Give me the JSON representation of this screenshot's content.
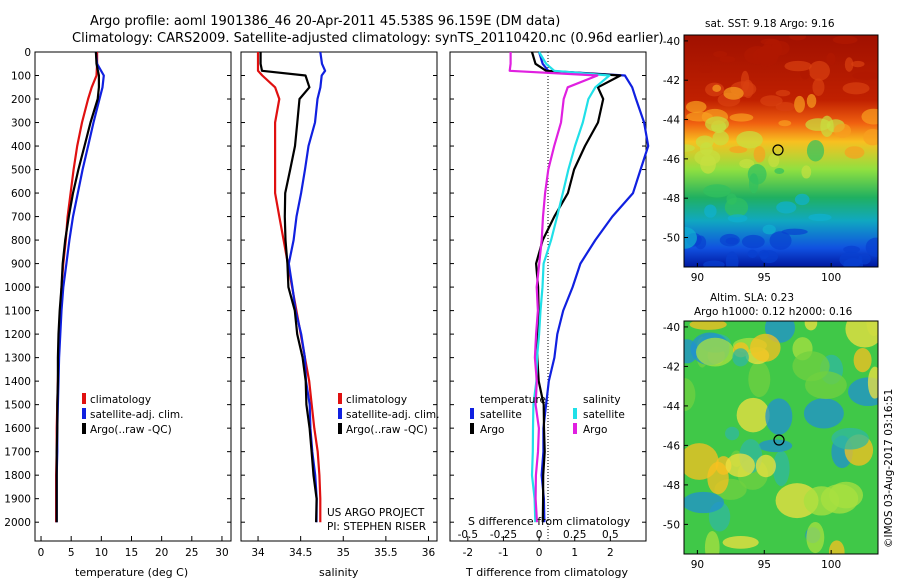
{
  "header": {
    "title1": "Argo profile: aoml 1901386_46 20-Apr-2011 45.538S 96.159E (DM data)",
    "title2": "Climatology: CARS2009. Satellite-adjusted climatology: synTS_20110420.nc (0.96d earlier)"
  },
  "colors": {
    "climatology": "#e01010",
    "satellite": "#1020e0",
    "argo": "#000000",
    "argo_salinity_diff": "#e020e0",
    "satellite_salinity_diff": "#20e0e8"
  },
  "chart_data": [
    {
      "type": "line",
      "panel": "temperature",
      "xlabel": "temperature (deg C)",
      "ylabel": "",
      "xlim": [
        -1,
        31.5
      ],
      "ylim": [
        2080,
        0
      ],
      "xticks": [
        "0",
        "5",
        "10",
        "15",
        "20",
        "25",
        "30"
      ],
      "yticks": [
        "0",
        "100",
        "200",
        "300",
        "400",
        "500",
        "600",
        "700",
        "800",
        "900",
        "1000",
        "1100",
        "1200",
        "1300",
        "1400",
        "1500",
        "1600",
        "1700",
        "1800",
        "1900",
        "2000"
      ],
      "legend": [
        "climatology",
        "satellite-adj. clim.",
        "Argo(..raw -QC)"
      ],
      "legend_position": "lower-right",
      "depth": [
        0,
        50,
        100,
        150,
        200,
        300,
        400,
        500,
        600,
        700,
        800,
        900,
        1000,
        1100,
        1200,
        1300,
        1400,
        1500,
        1600,
        1700,
        1800,
        1900,
        2000
      ],
      "series": [
        {
          "name": "climatology",
          "values": [
            9.3,
            9.3,
            9.2,
            8.4,
            7.8,
            6.8,
            6.0,
            5.4,
            4.9,
            4.4,
            4.1,
            3.7,
            3.4,
            3.2,
            3.0,
            2.9,
            2.8,
            2.7,
            2.6,
            2.6,
            2.5,
            2.5,
            2.5
          ]
        },
        {
          "name": "satellite-adj. clim.",
          "values": [
            9.1,
            9.3,
            10.4,
            10.2,
            9.7,
            8.7,
            7.8,
            6.9,
            6.1,
            5.3,
            4.7,
            4.2,
            3.7,
            3.4,
            3.2,
            3.0,
            2.9,
            2.8,
            2.7,
            2.7,
            2.6,
            2.6,
            2.6
          ]
        },
        {
          "name": "Argo(..raw -QC)",
          "values": [
            9.1,
            9.2,
            9.6,
            9.6,
            9.4,
            8.2,
            7.2,
            6.2,
            5.3,
            4.6,
            4.0,
            3.6,
            3.4,
            3.1,
            2.9,
            2.8,
            2.8,
            2.7,
            2.7,
            2.6,
            2.6,
            2.6,
            2.6
          ]
        }
      ]
    },
    {
      "type": "line",
      "panel": "salinity",
      "xlabel": "salinity",
      "ylabel": "",
      "xlim": [
        33.8,
        36.1
      ],
      "ylim": [
        2080,
        0
      ],
      "xticks": [
        "34",
        "34.5",
        "35",
        "35.5",
        "36"
      ],
      "legend": [
        "climatology",
        "satellite-adj. clim.",
        "Argo(..raw -QC)"
      ],
      "legend_position": "lower-right",
      "depth": [
        0,
        50,
        80,
        100,
        150,
        200,
        300,
        400,
        500,
        600,
        700,
        800,
        900,
        1000,
        1100,
        1200,
        1300,
        1400,
        1500,
        1600,
        1700,
        1800,
        1900,
        2000
      ],
      "series": [
        {
          "name": "climatology",
          "values": [
            34.0,
            34.0,
            34.0,
            34.05,
            34.2,
            34.25,
            34.2,
            34.2,
            34.2,
            34.2,
            34.25,
            34.3,
            34.35,
            34.4,
            34.45,
            34.5,
            34.55,
            34.6,
            34.63,
            34.66,
            34.7,
            34.72,
            34.73,
            34.73
          ]
        },
        {
          "name": "satellite-adj. clim.",
          "values": [
            34.73,
            34.75,
            34.78,
            34.76,
            34.74,
            34.71,
            34.66,
            34.6,
            34.55,
            34.5,
            34.46,
            34.42,
            34.37,
            34.4,
            34.45,
            34.5,
            34.54,
            34.57,
            34.6,
            34.62,
            34.65,
            34.67,
            34.69,
            34.7
          ]
        },
        {
          "name": "Argo(..raw -QC)",
          "values": [
            34.03,
            34.03,
            34.05,
            34.55,
            34.6,
            34.5,
            34.47,
            34.42,
            34.38,
            34.33,
            34.32,
            34.31,
            34.33,
            34.37,
            34.42,
            34.47,
            34.52,
            34.55,
            34.58,
            34.61,
            34.64,
            34.66,
            34.68,
            34.69
          ]
        }
      ]
    },
    {
      "type": "line",
      "panel": "difference",
      "xlabel": "T difference from climatology",
      "xlabel_top": "S difference from climatology",
      "xlim": [
        -2.5,
        3.0
      ],
      "ylim": [
        2080,
        0
      ],
      "xticks": [
        "-2",
        "-1",
        "0",
        "1",
        "2"
      ],
      "xticks_top": [
        "-0.5",
        "-0.25",
        "0",
        "0.25",
        "0.5"
      ],
      "legend": {
        "temperature": [
          "satellite",
          "Argo"
        ],
        "salinity": [
          "satellite",
          "Argo"
        ]
      },
      "legend_position": "lower-right",
      "depth": [
        0,
        50,
        80,
        100,
        150,
        200,
        300,
        400,
        500,
        600,
        700,
        800,
        900,
        1000,
        1100,
        1200,
        1300,
        1400,
        1500,
        1600,
        1700,
        1800,
        1900,
        2000
      ],
      "series": [
        {
          "name": "temperature satellite",
          "values": [
            0.0,
            0.1,
            0.3,
            2.4,
            2.6,
            2.7,
            3.0,
            3.1,
            2.8,
            2.6,
            2.1,
            1.6,
            1.2,
            0.9,
            0.7,
            0.5,
            0.4,
            0.3,
            0.2,
            0.15,
            0.1,
            0.1,
            0.1,
            0.1
          ]
        },
        {
          "name": "temperature Argo",
          "values": [
            -0.2,
            -0.1,
            0.2,
            2.3,
            1.6,
            1.8,
            1.6,
            1.3,
            1.0,
            0.8,
            0.4,
            0.1,
            -0.1,
            0.0,
            0.0,
            -0.05,
            -0.05,
            0.0,
            0.1,
            0.1,
            0.1,
            0.1,
            0.1,
            0.1
          ]
        },
        {
          "name": "salinity satellite",
          "values": [
            0.0,
            0.05,
            0.1,
            0.5,
            0.4,
            0.35,
            0.3,
            0.25,
            0.2,
            0.17,
            0.13,
            0.08,
            0.04,
            0.02,
            0.01,
            0.0,
            -0.01,
            -0.02,
            -0.03,
            -0.04,
            -0.04,
            -0.04,
            -0.03,
            -0.02
          ]
        },
        {
          "name": "salinity Argo",
          "values": [
            -0.2,
            -0.2,
            -0.2,
            0.4,
            0.2,
            0.18,
            0.15,
            0.1,
            0.07,
            0.05,
            0.02,
            0.01,
            0.0,
            -0.01,
            -0.01,
            -0.02,
            -0.02,
            -0.02,
            -0.02,
            -0.01,
            -0.01,
            -0.02,
            -0.02,
            -0.02
          ]
        }
      ]
    },
    {
      "type": "heatmap",
      "panel": "sst_map",
      "title": "sat. SST: 9.18 Argo: 9.16",
      "xticks": [
        "90",
        "95",
        "100"
      ],
      "yticks": [
        "-40",
        "-42",
        "-44",
        "-46",
        "-48",
        "-50"
      ],
      "xlim": [
        89,
        103.5
      ],
      "ylim": [
        -51.5,
        -39.7
      ],
      "marker": {
        "lon": 96.16,
        "lat": -45.54
      }
    },
    {
      "type": "heatmap",
      "panel": "sla_map",
      "title": "Altim. SLA: 0.23",
      "subtitle": "Argo h1000: 0.12 h2000: 0.16",
      "xticks": [
        "90",
        "95",
        "100"
      ],
      "yticks": [
        "-40",
        "-42",
        "-44",
        "-46",
        "-48",
        "-50"
      ],
      "xlim": [
        89,
        103.5
      ],
      "ylim": [
        -51.5,
        -39.7
      ],
      "marker": {
        "lon": 96.16,
        "lat": -45.54
      }
    }
  ],
  "legend_text": {
    "climatology": "climatology",
    "satellite_adj": "satellite-adj. clim.",
    "argo": "Argo(..raw -QC)",
    "temperature": "temperature",
    "salinity": "salinity",
    "satellite": "satellite",
    "argo_short": "Argo"
  },
  "credits": {
    "project": "US ARGO PROJECT",
    "pi": "PI: STEPHEN RISER",
    "stamp": "©IMOS 03-Aug-2017 03:16:51"
  }
}
